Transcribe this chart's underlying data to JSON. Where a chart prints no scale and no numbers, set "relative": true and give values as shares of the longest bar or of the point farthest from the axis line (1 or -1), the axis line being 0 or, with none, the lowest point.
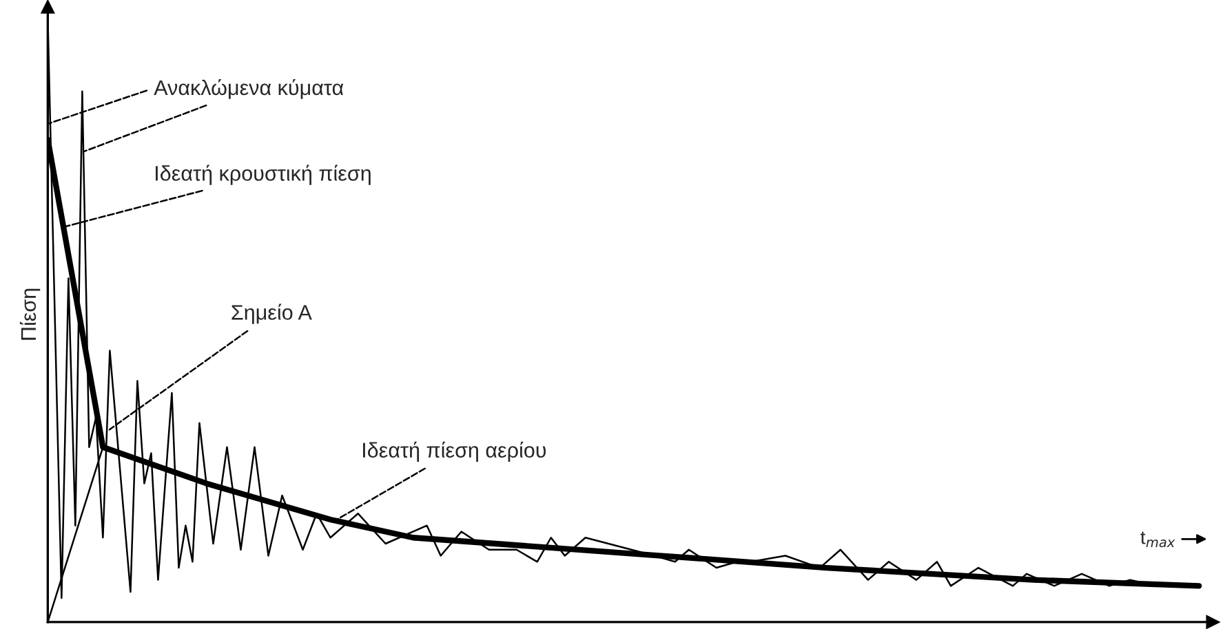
{
  "chart_data": {
    "type": "line",
    "relative": true,
    "ylabel": "Πίεση",
    "grid": false,
    "legend": false,
    "categories": [
      null,
      null,
      null,
      null,
      null,
      null,
      null,
      null,
      null,
      null,
      null,
      null,
      null,
      null,
      null,
      null,
      null,
      null,
      null,
      null,
      null,
      null,
      null,
      null,
      null,
      null,
      null,
      null,
      null,
      null,
      null,
      null,
      null,
      null,
      null,
      null,
      null,
      null,
      null,
      null,
      null,
      null,
      null,
      null,
      null,
      null,
      null,
      null,
      null,
      null,
      null,
      null,
      null,
      null,
      null,
      null,
      null,
      null,
      null,
      null,
      null,
      null,
      null,
      null,
      null,
      null,
      null,
      null,
      null,
      null,
      null,
      null,
      null,
      null,
      null,
      null,
      null,
      null,
      null,
      null,
      null,
      null,
      null,
      null,
      null,
      null,
      null,
      null,
      null,
      null,
      null,
      null,
      null,
      null,
      null,
      null,
      null,
      null,
      null,
      null,
      null,
      null,
      null,
      null,
      null,
      null,
      null,
      null,
      null,
      null,
      null,
      null,
      null,
      null,
      null,
      null,
      null,
      null,
      null,
      null,
      null,
      null,
      null,
      null,
      null,
      null,
      null,
      null,
      null,
      null,
      null,
      null,
      null,
      null,
      null,
      null,
      null,
      null,
      null,
      null,
      null,
      null,
      null,
      null,
      null,
      null,
      null,
      null,
      null,
      null,
      null,
      null,
      null,
      null,
      null,
      null,
      null,
      null,
      null,
      null,
      null,
      null,
      null,
      null,
      null,
      null,
      null,
      null,
      null,
      null
    ],
    "series": [
      {
        "color": "#000000",
        "values": [
          1.0,
          null,
          0.04,
          0.57,
          0.16,
          0.88,
          0.29,
          0.34,
          0.14,
          0.45,
          null,
          null,
          0.05,
          0.4,
          0.23,
          0.28,
          0.07,
          null,
          0.38,
          0.09,
          0.16,
          0.1,
          0.33,
          null,
          0.13,
          null,
          0.29,
          null,
          0.12,
          null,
          0.29,
          null,
          0.11,
          null,
          0.21,
          null,
          null,
          0.12,
          null,
          0.18,
          null,
          0.14,
          null,
          null,
          null,
          0.18,
          null,
          null,
          null,
          0.13,
          null,
          null,
          null,
          null,
          null,
          0.16,
          null,
          0.11,
          null,
          null,
          0.15,
          null,
          null,
          null,
          0.12,
          null,
          null,
          null,
          0.12,
          null,
          null,
          0.1,
          null,
          0.14,
          null,
          0.11,
          null,
          null,
          0.14,
          null,
          null,
          null,
          null,
          null,
          null,
          null,
          null,
          null,
          0.11,
          null,
          null,
          0.1,
          null,
          0.12,
          null,
          null,
          null,
          0.09,
          null,
          null,
          0.1,
          null,
          0.1,
          null,
          null,
          null,
          null,
          0.11,
          null,
          null,
          null,
          null,
          0.09,
          null,
          null,
          0.12,
          null,
          null,
          null,
          0.07,
          null,
          null,
          0.1,
          null,
          null,
          null,
          0.07,
          null,
          null,
          0.1,
          null,
          0.06,
          null,
          null,
          null,
          0.09,
          null,
          null,
          null,
          null,
          0.06,
          null,
          0.08,
          null,
          null,
          null,
          0.06,
          null,
          null,
          null,
          0.08,
          null,
          null,
          null,
          0.06,
          null,
          null,
          0.07,
          null,
          null,
          null,
          0.06,
          0.06,
          null,
          null,
          null,
          null,
          null,
          null,
          null
        ]
      },
      {
        "color": "#000000",
        "values": [
          0.8,
          null,
          null,
          null,
          null,
          null,
          null,
          null,
          0.29,
          null,
          null,
          null,
          null,
          null,
          null,
          null,
          null,
          null,
          null,
          null,
          null,
          null,
          null,
          0.23,
          null,
          null,
          null,
          null,
          null,
          null,
          null,
          null,
          null,
          null,
          null,
          null,
          null,
          null,
          null,
          null,
          null,
          0.17,
          null,
          null,
          null,
          null,
          null,
          null,
          null,
          null,
          null,
          null,
          null,
          0.14,
          null,
          null,
          null,
          null,
          null,
          null,
          null,
          null,
          null,
          null,
          null,
          null,
          null,
          null,
          null,
          null,
          null,
          null,
          null,
          null,
          null,
          null,
          null,
          null,
          null,
          null,
          null,
          null,
          null,
          null,
          null,
          null,
          null,
          null,
          null,
          0.11,
          null,
          null,
          null,
          null,
          null,
          null,
          null,
          null,
          null,
          null,
          null,
          null,
          null,
          null,
          null,
          null,
          null,
          null,
          null,
          null,
          null,
          null,
          null,
          0.09,
          null,
          null,
          null,
          null,
          null,
          null,
          null,
          null,
          null,
          null,
          null,
          null,
          null,
          null,
          null,
          null,
          null,
          null,
          null,
          null,
          null,
          null,
          null,
          null,
          null,
          null,
          null,
          null,
          null,
          0.07,
          null,
          null,
          null,
          null,
          null,
          null,
          null,
          null,
          null,
          null,
          null,
          null,
          null,
          null,
          null,
          null,
          null,
          null,
          null,
          null,
          null,
          null,
          null,
          0.06,
          null,
          null
        ]
      },
      {
        "color": "#000000",
        "values": [
          0.0,
          null,
          null,
          null,
          null,
          null,
          null,
          null,
          0.29,
          null,
          null,
          null,
          null,
          null,
          null,
          null,
          null,
          null,
          null,
          null,
          null,
          null,
          null,
          null,
          null,
          null,
          null,
          null,
          null,
          null,
          null,
          null,
          null,
          null,
          null,
          null,
          null,
          null,
          null,
          null,
          null,
          null,
          null,
          null,
          null,
          null,
          null,
          null,
          null,
          null,
          null,
          null,
          null,
          null,
          null,
          null,
          null,
          null,
          null,
          null,
          null,
          null,
          null,
          null,
          null,
          null,
          null,
          null,
          null,
          null,
          null,
          null,
          null,
          null,
          null,
          null,
          null,
          null,
          null,
          null,
          null,
          null,
          null,
          null,
          null,
          null,
          null,
          null,
          null,
          null,
          null,
          null,
          null,
          null,
          null,
          null,
          null,
          null,
          null,
          null,
          null,
          null,
          null,
          null,
          null,
          null,
          null,
          null,
          null,
          null,
          null,
          null,
          null,
          null,
          null,
          null,
          null,
          null,
          null,
          null,
          null,
          null,
          null,
          null,
          null,
          null,
          null,
          null,
          null,
          null,
          null,
          null,
          null,
          null,
          null,
          null,
          null,
          null,
          null,
          null,
          null,
          null,
          null,
          null,
          null,
          null,
          null,
          null,
          null,
          null,
          null,
          null,
          null,
          null,
          null,
          null,
          null,
          null,
          null,
          null,
          null,
          null,
          null,
          null,
          null,
          null,
          null,
          null,
          null,
          null
        ]
      }
    ],
    "annotations": [
      "Ανακλώμενα κύματα",
      "Ιδεατή κρουστική πίεση",
      "Σημείο Α",
      "Ιδεατή πίεση αερίου",
      "t$_{max}$"
    ]
  }
}
